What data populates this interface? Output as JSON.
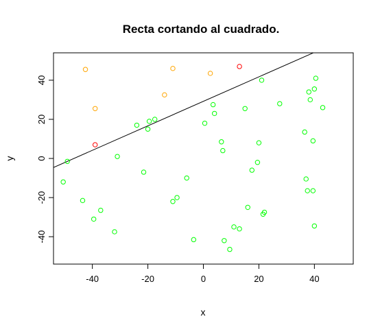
{
  "chart_data": {
    "type": "scatter",
    "title": "Recta cortando al cuadrado.",
    "xlabel": "x",
    "ylabel": "y",
    "xlim": [
      -54,
      54
    ],
    "ylim": [
      -54,
      54
    ],
    "xticks": [
      -40,
      -20,
      0,
      20,
      40
    ],
    "yticks": [
      -40,
      -20,
      0,
      20,
      40
    ],
    "grid": false,
    "line": {
      "color": "#000000",
      "points": [
        [
          -54,
          -4.6
        ],
        [
          54,
          63.0
        ]
      ]
    },
    "series": [
      {
        "color": "#00ff00",
        "points": [
          [
            -49,
            -1.5
          ],
          [
            -50.5,
            -12
          ],
          [
            -43.5,
            -21.5
          ],
          [
            -39.5,
            -31
          ],
          [
            -37,
            -26.5
          ],
          [
            -32,
            -37.5
          ],
          [
            -31,
            1
          ],
          [
            -24,
            17
          ],
          [
            -21.5,
            -7
          ],
          [
            -20,
            15
          ],
          [
            -19.5,
            19
          ],
          [
            -17.5,
            20
          ],
          [
            -11,
            -22
          ],
          [
            -9.5,
            -20
          ],
          [
            -6,
            -10
          ],
          [
            -3.5,
            -41.5
          ],
          [
            0.5,
            18
          ],
          [
            3.5,
            27.5
          ],
          [
            4,
            23
          ],
          [
            6.5,
            8.5
          ],
          [
            7,
            4
          ],
          [
            7.5,
            -42
          ],
          [
            9.5,
            -46.5
          ],
          [
            11,
            -35
          ],
          [
            13,
            -36
          ],
          [
            15,
            25.5
          ],
          [
            16,
            -25
          ],
          [
            17.5,
            -6
          ],
          [
            19.5,
            -2
          ],
          [
            20,
            8
          ],
          [
            21,
            40
          ],
          [
            21.5,
            -28.5
          ],
          [
            22,
            -27.5
          ],
          [
            27.5,
            28
          ],
          [
            36.5,
            13.5
          ],
          [
            37,
            -10.5
          ],
          [
            37.5,
            -16.5
          ],
          [
            38,
            34
          ],
          [
            38.5,
            30
          ],
          [
            39.5,
            -16.5
          ],
          [
            39.5,
            9
          ],
          [
            40,
            35.5
          ],
          [
            40,
            -34.5
          ],
          [
            40.5,
            41
          ],
          [
            43,
            26
          ]
        ]
      },
      {
        "color": "#ffa500",
        "points": [
          [
            -42.5,
            45.5
          ],
          [
            -39,
            25.5
          ],
          [
            -14,
            32.5
          ],
          [
            -11,
            46
          ],
          [
            2.5,
            43.5
          ]
        ]
      },
      {
        "color": "#ff0000",
        "points": [
          [
            -39,
            7
          ],
          [
            13,
            47
          ]
        ]
      }
    ]
  }
}
